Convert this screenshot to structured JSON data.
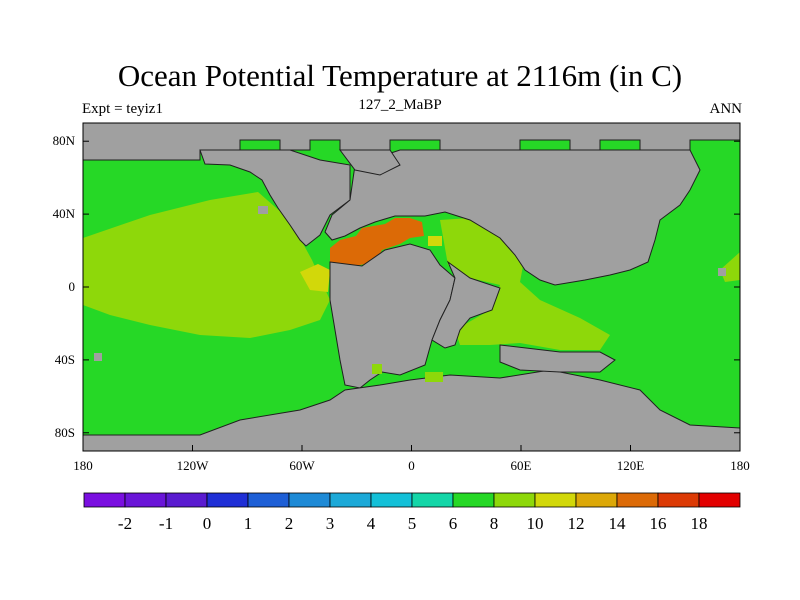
{
  "title": "Ocean Potential Temperature at 2116m (in C)",
  "subtitle_left": "Expt = teyiz1",
  "subtitle_center": "127_2_MaBP",
  "subtitle_right": "ANN",
  "map": {
    "projection": "cylindrical-equidistant",
    "lon_range": [
      -180,
      180
    ],
    "lat_range": [
      -90,
      90
    ],
    "land_color": "#a0a0a0",
    "x_ticks": [
      {
        "value": -180,
        "label": "180"
      },
      {
        "value": -120,
        "label": "120W"
      },
      {
        "value": -60,
        "label": "60W"
      },
      {
        "value": 0,
        "label": "0"
      },
      {
        "value": 60,
        "label": "60E"
      },
      {
        "value": 120,
        "label": "120E"
      },
      {
        "value": 180,
        "label": "180"
      }
    ],
    "y_ticks": [
      {
        "value": 80,
        "label": "80N"
      },
      {
        "value": 40,
        "label": "40N"
      },
      {
        "value": 0,
        "label": "0"
      },
      {
        "value": -40,
        "label": "40S"
      },
      {
        "value": -80,
        "label": "80S"
      }
    ]
  },
  "colorbar": {
    "colors": [
      "#7a0fe0",
      "#6a15d8",
      "#5a1bd0",
      "#1f2fd6",
      "#1e5fd6",
      "#1e8ad6",
      "#1ca9d8",
      "#13c0d8",
      "#14d6a8",
      "#26d826",
      "#8ed80a",
      "#d2d80a",
      "#dca808",
      "#dc6a06",
      "#dc3a05",
      "#e20000"
    ],
    "labels": [
      "-2",
      "-1",
      "0",
      "1",
      "2",
      "3",
      "4",
      "5",
      "6",
      "8",
      "10",
      "12",
      "14",
      "16",
      "18"
    ]
  },
  "field_colors": {
    "8": "#26d826",
    "10": "#8ed80a",
    "12": "#d2d80a",
    "16": "#dc6a06"
  }
}
